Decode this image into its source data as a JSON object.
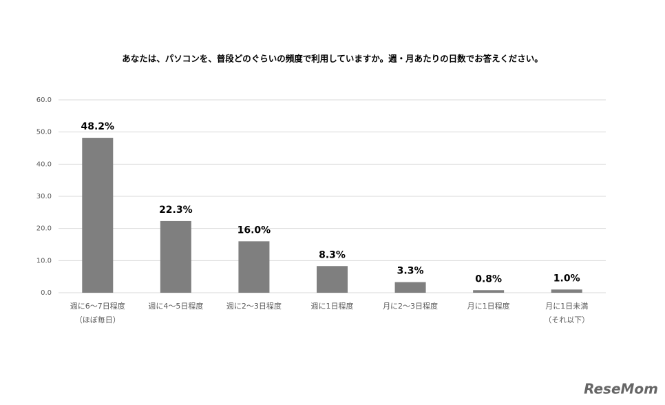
{
  "chart_data": {
    "type": "bar",
    "title": "あなたは、パソコンを、普段どのぐらいの頻度で利用していますか。週・月あたりの日数でお答えください。",
    "categories": [
      [
        "週に6～7日程度",
        "（ほぼ毎日）"
      ],
      [
        "週に4～5日程度"
      ],
      [
        "週に2～3日程度"
      ],
      [
        "週に1日程度"
      ],
      [
        "月に2～3日程度"
      ],
      [
        "月に1日程度"
      ],
      [
        "月に1日未満",
        "（それ以下）"
      ]
    ],
    "values": [
      48.2,
      22.3,
      16.0,
      8.3,
      3.3,
      0.8,
      1.0
    ],
    "value_labels": [
      "48.2%",
      "22.3%",
      "16.0%",
      "8.3%",
      "3.3%",
      "0.8%",
      "1.0%"
    ],
    "color": "#7f7f7f",
    "ylim": [
      0,
      60
    ],
    "yticks": [
      {
        "value": 0,
        "label": "0.0"
      },
      {
        "value": 10,
        "label": "10.0"
      },
      {
        "value": 20,
        "label": "20.0"
      },
      {
        "value": 30,
        "label": "30.0"
      },
      {
        "value": 40,
        "label": "40.0"
      },
      {
        "value": 50,
        "label": "50.0"
      },
      {
        "value": 60,
        "label": "60.0"
      }
    ],
    "grid": true,
    "watermark": "ReseMom"
  }
}
